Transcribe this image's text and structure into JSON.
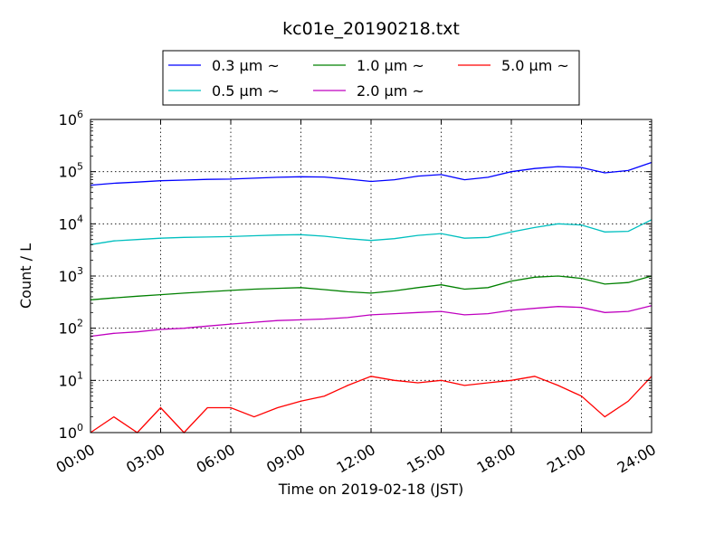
{
  "chart_data": {
    "type": "line",
    "title": "kc01e_20190218.txt",
    "xlabel": "Time on 2019-02-18 (JST)",
    "ylabel": "Count / L",
    "y_scale": "log",
    "ylim": [
      1,
      1000000
    ],
    "xlim": [
      "00:00",
      "24:00"
    ],
    "x_ticks": [
      "00:00",
      "03:00",
      "06:00",
      "09:00",
      "12:00",
      "15:00",
      "18:00",
      "21:00",
      "24:00"
    ],
    "y_ticks": [
      {
        "base": "10",
        "exp": "0"
      },
      {
        "base": "10",
        "exp": "1"
      },
      {
        "base": "10",
        "exp": "2"
      },
      {
        "base": "10",
        "exp": "3"
      },
      {
        "base": "10",
        "exp": "4"
      },
      {
        "base": "10",
        "exp": "5"
      },
      {
        "base": "10",
        "exp": "6"
      }
    ],
    "grid": true,
    "legend_position": "top-center",
    "x_hours": [
      0,
      1,
      2,
      3,
      4,
      5,
      6,
      7,
      8,
      9,
      10,
      11,
      12,
      13,
      14,
      15,
      16,
      17,
      18,
      19,
      20,
      21,
      22,
      23,
      24
    ],
    "series": [
      {
        "name": "0.3 μm ~",
        "color": "#0000ff",
        "values": [
          55000,
          60000,
          63000,
          67000,
          69000,
          71000,
          72000,
          75000,
          78000,
          80000,
          79000,
          72000,
          65000,
          70000,
          82000,
          88000,
          70000,
          78000,
          100000,
          115000,
          125000,
          120000,
          95000,
          105000,
          150000
        ]
      },
      {
        "name": "0.5 μm ~",
        "color": "#00bfbf",
        "values": [
          4000,
          4700,
          5000,
          5300,
          5500,
          5600,
          5700,
          5900,
          6100,
          6200,
          5800,
          5200,
          4800,
          5200,
          6000,
          6500,
          5300,
          5500,
          7000,
          8500,
          10000,
          9500,
          7000,
          7200,
          12000
        ]
      },
      {
        "name": "1.0 μm ~",
        "color": "#008000",
        "values": [
          350,
          380,
          410,
          440,
          470,
          500,
          530,
          560,
          580,
          600,
          550,
          500,
          470,
          520,
          600,
          680,
          560,
          600,
          800,
          950,
          1000,
          900,
          700,
          750,
          1000
        ]
      },
      {
        "name": "2.0 μm ~",
        "color": "#bf00bf",
        "values": [
          70,
          80,
          85,
          95,
          100,
          110,
          120,
          130,
          140,
          145,
          150,
          160,
          180,
          190,
          200,
          210,
          180,
          190,
          220,
          240,
          260,
          250,
          200,
          210,
          270
        ]
      },
      {
        "name": "5.0 μm ~",
        "color": "#ff0000",
        "values": [
          1,
          2,
          1,
          3,
          1,
          3,
          3,
          2,
          3,
          4,
          5,
          8,
          12,
          10,
          9,
          10,
          8,
          9,
          10,
          12,
          8,
          5,
          2,
          4,
          12
        ]
      }
    ]
  }
}
